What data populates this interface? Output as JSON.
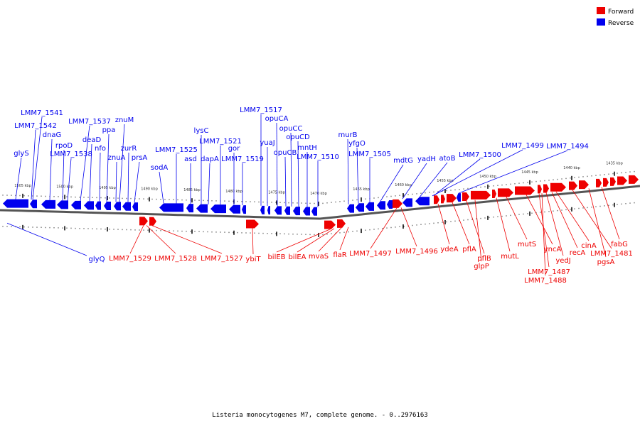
{
  "legend": {
    "forward": {
      "label": "Forward",
      "color": "#ee0000"
    },
    "reverse": {
      "label": "Reverse",
      "color": "#0000ee"
    }
  },
  "title": "Listeria monocytogenes M7, complete genome. - 0..2976163",
  "scale": {
    "top": [
      "1505 kbp",
      "1500 kbp",
      "1495 kbp",
      "1490 kbp",
      "1485 kbp",
      "1480 kbp",
      "1475 kbp",
      "1470 kbp",
      "1465 kbp",
      "1460 kbp",
      "1455 kbp",
      "1450 kbp",
      "1445 kbp",
      "1440 kbp",
      "1435 kbp"
    ]
  },
  "reverse_genes": [
    "glyS",
    "LMM7_1542",
    "LMM7_1541",
    "dnaG",
    "rpoD",
    "LMM7_1538",
    "LMM7_1537",
    "deaD",
    "nfo",
    "ppa",
    "znuA",
    "znuM",
    "zurR",
    "prsA",
    "sodA",
    "LMM7_1525",
    "asd",
    "lysC",
    "dapA",
    "LMM7_1521",
    "gor",
    "LMM7_1519",
    "LMM7_1517",
    "yuaJ",
    "opuCA",
    "opuCB",
    "opuCC",
    "opuCD",
    "mntH",
    "LMM7_1510",
    "murB",
    "yfgO",
    "LMM7_1505",
    "mdtG",
    "yadH",
    "atoB",
    "LMM7_1500",
    "LMM7_1499",
    "LMM7_1494",
    "glyQ"
  ],
  "forward_genes": [
    "LMM7_1529",
    "LMM7_1528",
    "LMM7_1527",
    "ybiT",
    "bilEB",
    "bilEA",
    "mvaS",
    "flaR",
    "LMM7_1497",
    "LMM7_1496",
    "ydeA",
    "pflA",
    "pflB",
    "glpP",
    "mutL",
    "mutS",
    "yncA",
    "LMM7_1487",
    "LMM7_1488",
    "yedJ",
    "recA",
    "cinA",
    "LMM7_1481",
    "pgsA",
    "fabG"
  ]
}
